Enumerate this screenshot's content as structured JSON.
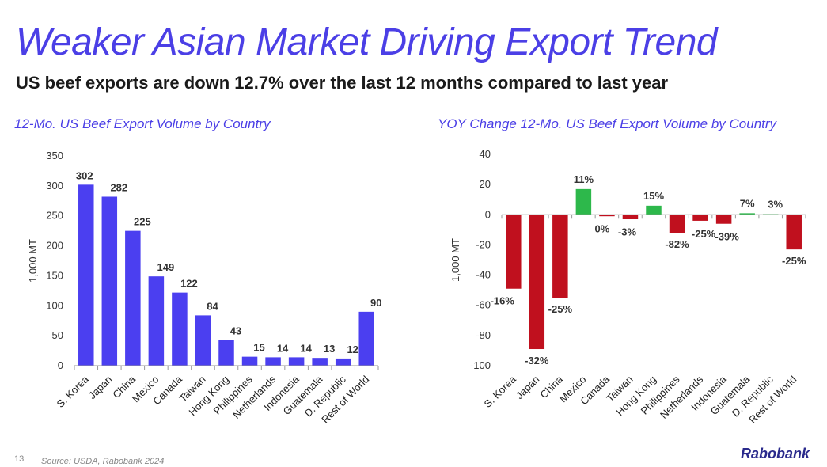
{
  "title": "Weaker Asian Market Driving Export Trend",
  "subtitle": "US beef exports are down 12.7% over the last 12 months compared to last year",
  "page_number": "13",
  "source": "Source: USDA, Rabobank 2024",
  "logo_text": "Rabobank",
  "colors": {
    "title": "#4b3fe6",
    "bar_blue": "#4b3ff0",
    "bar_red": "#c0101e",
    "bar_green": "#2db84b"
  },
  "chart_data": [
    {
      "type": "bar",
      "title": "12-Mo. US Beef Export Volume by Country",
      "ylabel": "1,000 MT",
      "xlabel": "",
      "ylim": [
        0,
        350
      ],
      "yticks": [
        0,
        50,
        100,
        150,
        200,
        250,
        300,
        350
      ],
      "categories": [
        "S. Korea",
        "Japan",
        "China",
        "Mexico",
        "Canada",
        "Taiwan",
        "Hong Kong",
        "Philippines",
        "Netherlands",
        "Indonesia",
        "Guatemala",
        "D. Republic",
        "Rest of World"
      ],
      "values": [
        302,
        282,
        225,
        149,
        122,
        84,
        43,
        15,
        14,
        14,
        13,
        12,
        90
      ],
      "data_labels": [
        "302",
        "282",
        "225",
        "149",
        "122",
        "84",
        "43",
        "15",
        "14",
        "14",
        "13",
        "12",
        "90"
      ],
      "grid": false
    },
    {
      "type": "bar",
      "title": "YOY Change 12-Mo. US Beef Export Volume by Country",
      "ylabel": "1,000 MT",
      "xlabel": "",
      "ylim": [
        -100,
        40
      ],
      "yticks": [
        -100,
        -80,
        -60,
        -40,
        -20,
        0,
        20,
        40
      ],
      "categories": [
        "S. Korea",
        "Japan",
        "China",
        "Mexico",
        "Canada",
        "Taiwan",
        "Hong Kong",
        "Philippines",
        "Netherlands",
        "Indonesia",
        "Guatemala",
        "D. Republic",
        "Rest of World"
      ],
      "values": [
        -49,
        -89,
        -55,
        17,
        -1,
        -3,
        6,
        -12,
        -4,
        -6,
        1,
        0.4,
        -23
      ],
      "data_labels": [
        "-16%",
        "-32%",
        "-25%",
        "11%",
        "0%",
        "-3%",
        "15%",
        "-82%",
        "-25%",
        "-39%",
        "7%",
        "3%",
        "-25%"
      ],
      "grid": false
    }
  ]
}
